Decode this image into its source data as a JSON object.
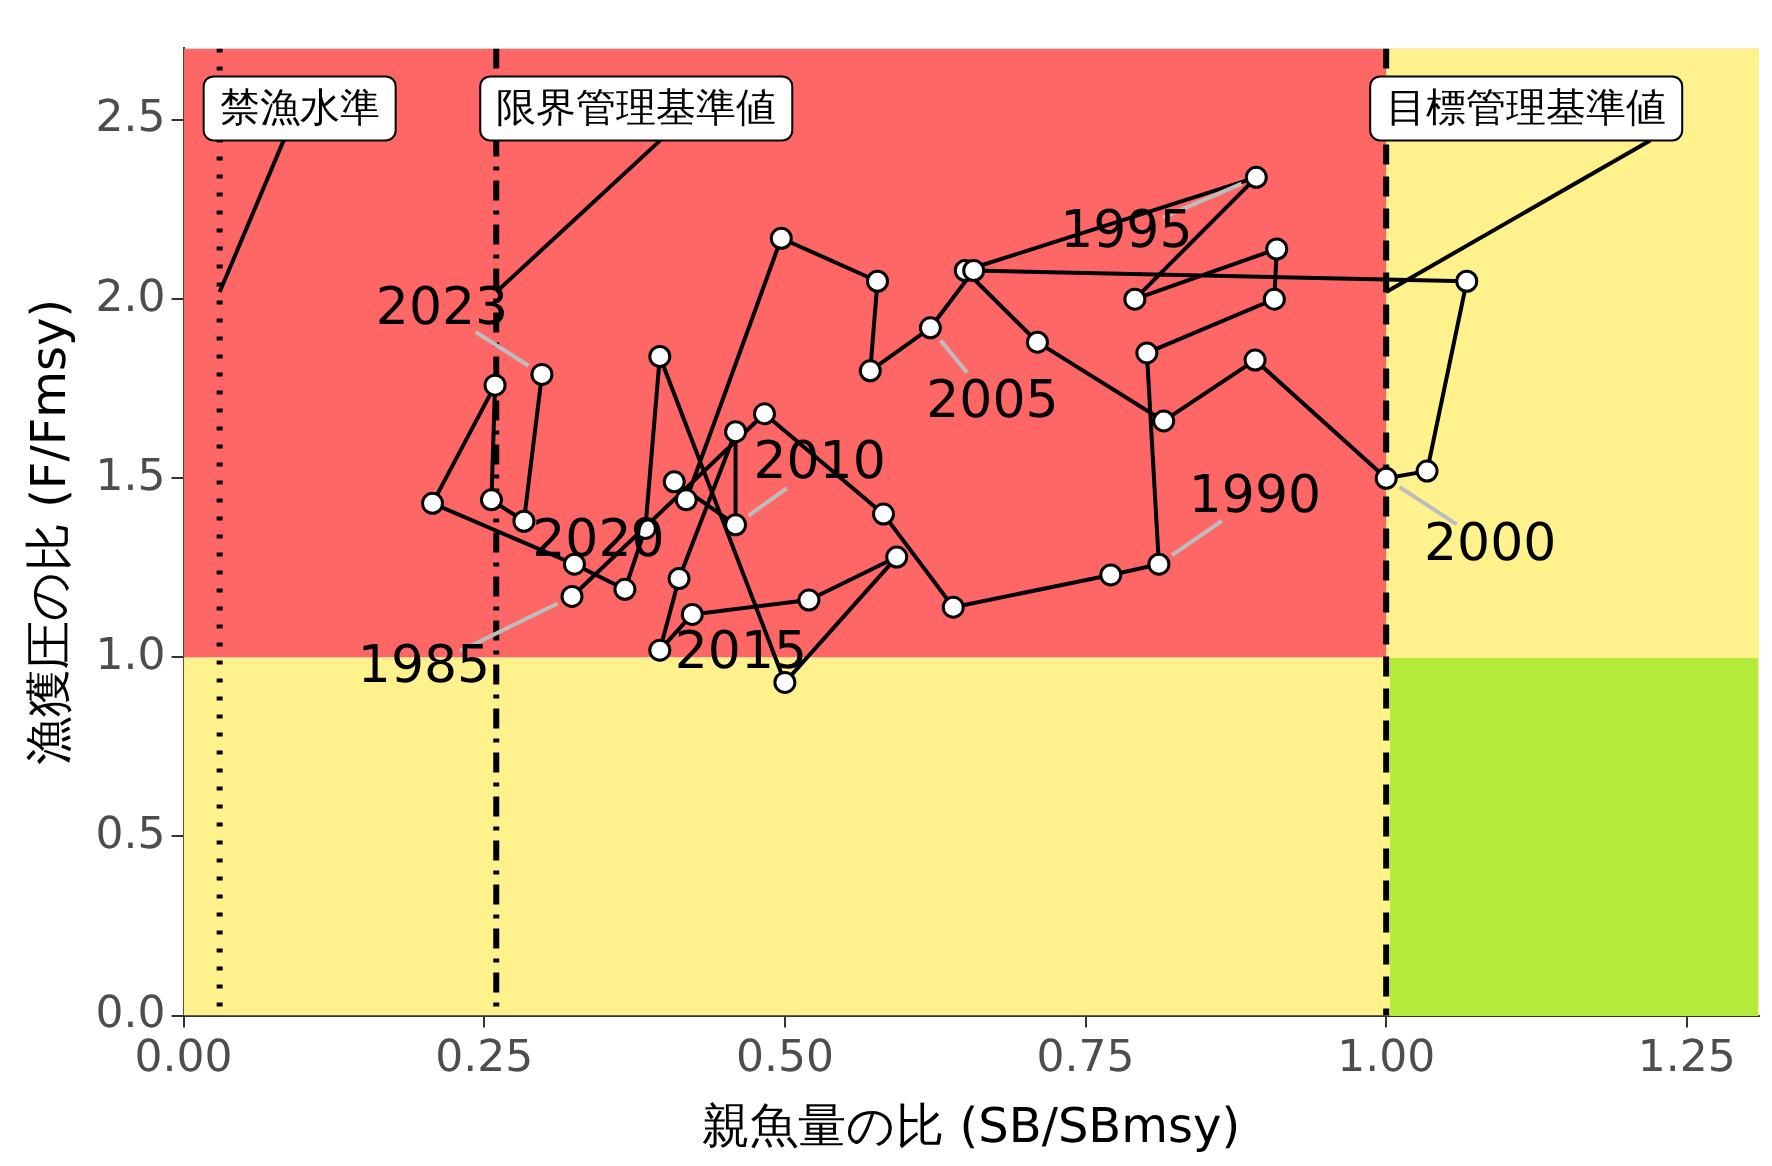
{
  "chart_data": {
    "type": "line",
    "xlabel": "親魚量の比 (SB/SBmsy)",
    "ylabel": "漁獲圧の比 (F/Fmsy)",
    "xlim": [
      0,
      1.31
    ],
    "ylim": [
      0,
      2.7
    ],
    "xticks": [
      {
        "value": 0,
        "label": "0.00"
      },
      {
        "value": 0.25,
        "label": "0.25"
      },
      {
        "value": 0.5,
        "label": "0.50"
      },
      {
        "value": 0.75,
        "label": "0.75"
      },
      {
        "value": 1,
        "label": "1.00"
      },
      {
        "value": 1.25,
        "label": "1.25"
      }
    ],
    "yticks": [
      {
        "value": 0,
        "label": "0.0"
      },
      {
        "value": 0.5,
        "label": "0.5"
      },
      {
        "value": 1,
        "label": "1.0"
      },
      {
        "value": 1.5,
        "label": "1.5"
      },
      {
        "value": 2,
        "label": "2.0"
      },
      {
        "value": 2.5,
        "label": "2.5"
      }
    ],
    "grid": false,
    "legend": false,
    "marker": "circle",
    "line_style": "solid",
    "series": [
      {
        "color": "#000000",
        "x": [
          0.323,
          0.483,
          0.582,
          0.64,
          0.771,
          0.811,
          0.801,
          0.907,
          0.909,
          0.791,
          0.892,
          0.65,
          0.71,
          0.815,
          0.891,
          1.0,
          1.034,
          1.067,
          0.657,
          0.621,
          0.571,
          0.577,
          0.497,
          0.418,
          0.408,
          0.459,
          0.459,
          0.412,
          0.396,
          0.423,
          0.52,
          0.593,
          0.5,
          0.396,
          0.384,
          0.367,
          0.325,
          0.207,
          0.259,
          0.256,
          0.283,
          0.298
        ],
        "values": [
          1.17,
          1.68,
          1.4,
          1.14,
          1.23,
          1.26,
          1.85,
          2.0,
          2.14,
          2.0,
          2.34,
          2.08,
          1.88,
          1.66,
          1.83,
          1.5,
          1.52,
          2.05,
          2.08,
          1.92,
          1.8,
          2.05,
          2.17,
          1.44,
          1.49,
          1.37,
          1.63,
          1.22,
          1.02,
          1.12,
          1.16,
          1.28,
          0.93,
          1.84,
          1.36,
          1.19,
          1.26,
          1.43,
          1.76,
          1.44,
          1.38,
          1.79
        ]
      }
    ],
    "bands": [
      {
        "axis": "y",
        "from": 1,
        "to": 2.7,
        "color": "#ff6666"
      },
      {
        "axis": "y",
        "from": 0,
        "to": 1,
        "color": "#fff18c"
      },
      {
        "axis": "x",
        "from": 1,
        "to": 1.31,
        "color": "#fff18c"
      }
    ],
    "ref_lines": [
      {
        "axis": "x",
        "value": 0.03,
        "label": "禁漁水準",
        "line_style": "dotted",
        "color": "#000000"
      },
      {
        "axis": "x",
        "value": 0.26,
        "label": "限界管理基準値",
        "line_style": "dashdot",
        "color": "#000000"
      },
      {
        "axis": "x",
        "value": 1,
        "label": "目標管理基準値",
        "line_style": "dashed",
        "color": "#000000"
      }
    ],
    "annotations": [
      {
        "text": "1985",
        "x": 0.323,
        "y": 1.17
      },
      {
        "text": "1990",
        "x": 0.811,
        "y": 1.26
      },
      {
        "text": "1995",
        "x": 0.892,
        "y": 2.34
      },
      {
        "text": "2000",
        "x": 1.0,
        "y": 1.5
      },
      {
        "text": "2005",
        "x": 0.621,
        "y": 1.92
      },
      {
        "text": "2010",
        "x": 0.459,
        "y": 1.37
      },
      {
        "text": "2015",
        "x": 0.5,
        "y": 0.93
      },
      {
        "text": "2020",
        "x": 0.325,
        "y": 1.26
      },
      {
        "text": "2023",
        "x": 0.298,
        "y": 1.79
      }
    ]
  }
}
